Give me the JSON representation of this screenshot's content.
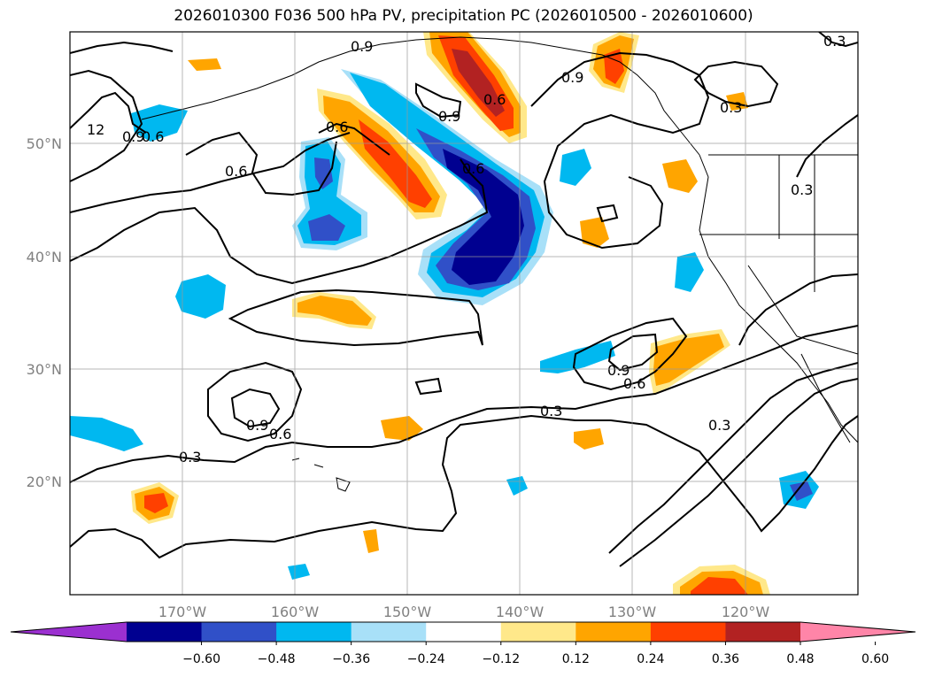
{
  "title": "2026010300 F036 500 hPa PV, precipitation PC (2026010500 - 2026010600)",
  "lon_labels": [
    "170°W",
    "160°W",
    "150°W",
    "140°W",
    "130°W",
    "120°W"
  ],
  "lat_labels": [
    "50°N",
    "40°N",
    "30°N",
    "20°N"
  ],
  "contour_labels": [
    {
      "text": "0.9"
    },
    {
      "text": "0.6"
    },
    {
      "text": "0.9"
    },
    {
      "text": "0.9"
    },
    {
      "text": "0.6"
    },
    {
      "text": "0.6"
    },
    {
      "text": "0.6"
    },
    {
      "text": "0.3"
    },
    {
      "text": "0.3"
    },
    {
      "text": "0.3"
    },
    {
      "text": "12"
    },
    {
      "text": "0.9"
    },
    {
      "text": "0.9"
    },
    {
      "text": "0.6"
    },
    {
      "text": "0.3"
    },
    {
      "text": "0.9"
    },
    {
      "text": "0.6"
    },
    {
      "text": "0.3"
    },
    {
      "text": "0.3"
    },
    {
      "text": "0.6"
    }
  ],
  "colorbar": {
    "ticks": [
      "−0.60",
      "−0.48",
      "−0.36",
      "−0.24",
      "−0.12",
      "0.12",
      "0.24",
      "0.36",
      "0.48",
      "0.60"
    ],
    "colors": [
      "#9b30d0",
      "#000090",
      "#3050c8",
      "#00b8f0",
      "#a8e0f8",
      "#ffffff",
      "#ffe88a",
      "#ffa500",
      "#ff4000",
      "#b22222",
      "#ff85a8"
    ]
  },
  "colors": {
    "n_light": "#a8e0f8",
    "n_mid": "#00b8f0",
    "n_strong": "#3050c8",
    "n_max": "#000090",
    "p_light": "#ffe88a",
    "p_mid": "#ffa500",
    "p_strong": "#ff4000",
    "p_max": "#b22222"
  }
}
